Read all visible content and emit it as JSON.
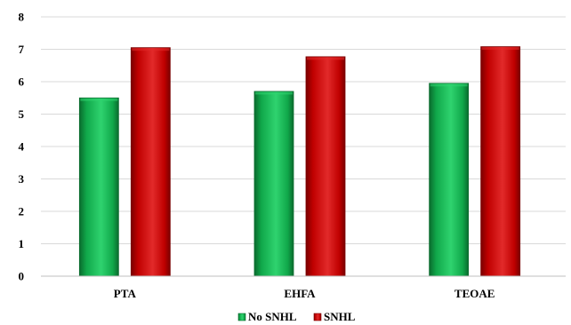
{
  "chart_data": {
    "type": "bar",
    "categories": [
      "PTA",
      "EHFA",
      "TEOAE"
    ],
    "series": [
      {
        "name": "No SNHL",
        "values": [
          5.5,
          5.7,
          5.95
        ],
        "color": "#10a84a",
        "color_light": "#2fd36f",
        "color_dark": "#0a6b2e"
      },
      {
        "name": "SNHL",
        "values": [
          7.05,
          6.77,
          7.08
        ],
        "color": "#c00000",
        "color_light": "#e22a2a",
        "color_dark": "#7a0000"
      }
    ],
    "yticks": [
      0,
      1,
      2,
      3,
      4,
      5,
      6,
      7,
      8
    ],
    "ylim": [
      0,
      8
    ],
    "grid": true,
    "legend": "bottom-center"
  }
}
